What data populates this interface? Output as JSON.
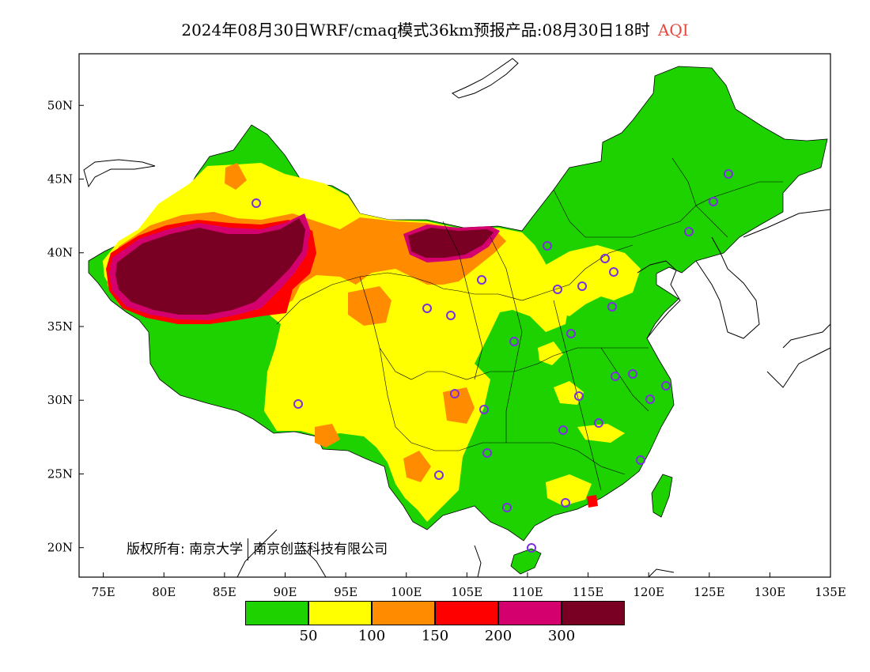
{
  "title": {
    "text": "2024年08月30日WRF/cmaq模式36km预报产品:08月30日18时",
    "variable": "AQI"
  },
  "map": {
    "longitude_ticks": [
      "75E",
      "80E",
      "85E",
      "90E",
      "95E",
      "100E",
      "105E",
      "110E",
      "115E",
      "120E",
      "125E",
      "130E",
      "135E"
    ],
    "latitude_ticks": [
      "50N",
      "45N",
      "40N",
      "35N",
      "30N",
      "25N",
      "20N"
    ],
    "lon_range": [
      73,
      135
    ],
    "lat_range": [
      18,
      53.5
    ]
  },
  "credit": {
    "label": "版权所有:",
    "org1": "南京大学",
    "org2": "南京创蓝科技有限公司"
  },
  "legend": {
    "colors": [
      "#1ed200",
      "#ffff00",
      "#ff8c00",
      "#ff0000",
      "#d4006e",
      "#7a0023"
    ],
    "labels": [
      "50",
      "100",
      "150",
      "200",
      "300"
    ]
  },
  "stations": {
    "marker_color": "#7b2fe0"
  },
  "colors": {
    "background": "#ffffff",
    "title_accent": "#e8453c",
    "border": "#000000"
  }
}
